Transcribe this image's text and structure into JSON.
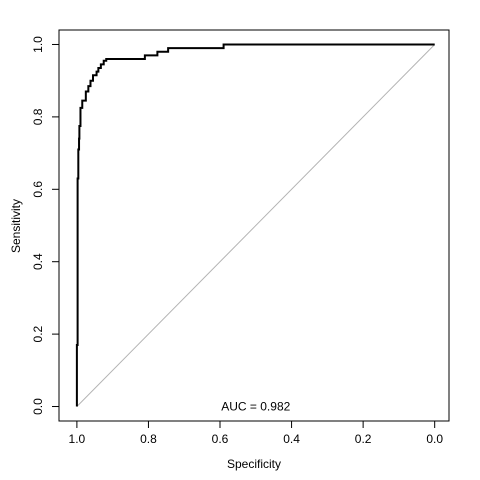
{
  "chart_data": {
    "type": "line",
    "title": "",
    "xlabel": "Specificity",
    "ylabel": "Sensitivity",
    "x_reversed": true,
    "xlim": [
      1.05,
      -0.04
    ],
    "ylim": [
      -0.04,
      1.04
    ],
    "x_ticks": [
      1.0,
      0.8,
      0.6,
      0.4,
      0.2,
      0.0
    ],
    "x_tick_labels": [
      "1.0",
      "0.8",
      "0.6",
      "0.4",
      "0.2",
      "0.0"
    ],
    "y_ticks": [
      0.0,
      0.2,
      0.4,
      0.6,
      0.8,
      1.0
    ],
    "y_tick_labels": [
      "0.0",
      "0.2",
      "0.4",
      "0.6",
      "0.8",
      "1.0"
    ],
    "grid": false,
    "diagonal_color": "#b3b3b3",
    "curve_color": "#000000",
    "annotation": "AUC = 0.982",
    "series": [
      {
        "x": [
          1.0,
          1.0,
          0.998,
          0.998,
          0.996,
          0.996,
          0.994,
          0.994,
          0.993,
          0.993,
          0.99,
          0.99,
          0.985,
          0.985,
          0.975,
          0.975,
          0.968,
          0.968,
          0.962,
          0.962,
          0.955,
          0.955,
          0.945,
          0.945,
          0.94,
          0.94,
          0.933,
          0.933,
          0.925,
          0.925,
          0.918,
          0.918,
          0.81,
          0.81,
          0.775,
          0.775,
          0.745,
          0.745,
          0.59,
          0.59,
          0.0
        ],
        "y": [
          0.0,
          0.17,
          0.17,
          0.63,
          0.63,
          0.71,
          0.71,
          0.74,
          0.74,
          0.775,
          0.775,
          0.825,
          0.825,
          0.845,
          0.845,
          0.87,
          0.87,
          0.885,
          0.885,
          0.9,
          0.9,
          0.915,
          0.915,
          0.925,
          0.925,
          0.935,
          0.935,
          0.945,
          0.945,
          0.955,
          0.955,
          0.96,
          0.96,
          0.97,
          0.97,
          0.98,
          0.98,
          0.99,
          0.99,
          1.0,
          1.0
        ]
      }
    ]
  }
}
